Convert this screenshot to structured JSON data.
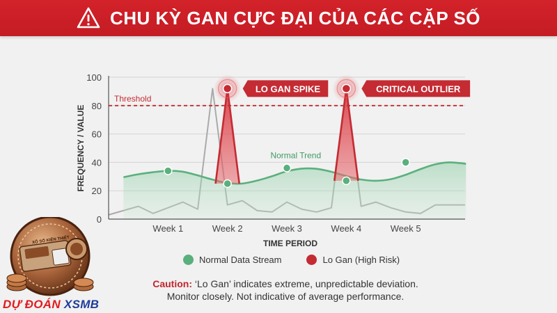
{
  "header": {
    "title": "CHU KỲ GAN CỰC ĐẠI CỦA CÁC CẶP SỐ",
    "icon": "warning-triangle-icon"
  },
  "chart_data": {
    "type": "line",
    "categories": [
      "Week 1",
      "Week 2",
      "Week 3",
      "Week 4",
      "Week 5"
    ],
    "xlabel": "TIME PERIOD",
    "ylabel": "FREQUENCY / VALUE",
    "ylim": [
      0,
      100
    ],
    "yticks": [
      0,
      20,
      40,
      60,
      80,
      100
    ],
    "grid": true,
    "threshold": {
      "label": "Threshold",
      "value": 80
    },
    "series": [
      {
        "name": "Normal Data Stream",
        "color": "#5ab07d",
        "x": [
          0.5,
          0.97,
          1.47,
          1.97,
          2.47,
          2.97,
          3.47,
          3.97,
          4.47,
          4.97,
          5.47,
          5.97,
          6.47,
          6.97,
          7.47,
          7.97,
          8.47,
          8.97,
          9.47,
          9.97,
          10.47,
          10.97,
          11.47,
          12.03
        ],
        "values": [
          29.5,
          31.5,
          33,
          34,
          33.5,
          31,
          28,
          25.5,
          25,
          27,
          30,
          33.5,
          35.5,
          35.5,
          33.5,
          30.5,
          28,
          27,
          28,
          31,
          35,
          38.5,
          40,
          39
        ],
        "markers": [
          {
            "x": 2,
            "value": 34
          },
          {
            "x": 4,
            "value": 25
          },
          {
            "x": 6,
            "value": 36
          },
          {
            "x": 8,
            "value": 27
          },
          {
            "x": 10,
            "value": 40
          }
        ]
      },
      {
        "name": "Lo Gan (High Risk)",
        "color": "#c42b33",
        "spikes": [
          {
            "start": 3.6,
            "peak": 4.0,
            "end": 4.4,
            "base": 25,
            "value": 92,
            "label": "LO GAN SPIKE"
          },
          {
            "start": 7.6,
            "peak": 8.0,
            "end": 8.4,
            "base": 27,
            "value": 92,
            "label": "CRITICAL OUTLIER"
          }
        ]
      },
      {
        "name": "Background",
        "color": "#aaaaaa",
        "x": [
          0,
          0.5,
          1,
          1.5,
          2,
          2.5,
          3,
          3.5,
          4,
          4.5,
          5,
          5.5,
          6,
          6.5,
          7,
          7.5,
          8,
          8.5,
          9,
          9.5,
          10,
          10.5,
          11,
          11.5,
          12
        ],
        "values": [
          3,
          6,
          9,
          4,
          8,
          12,
          7,
          92,
          10,
          13,
          6,
          5,
          12,
          7,
          5,
          8,
          92,
          9,
          12,
          8,
          5,
          4,
          10,
          10,
          10
        ]
      }
    ],
    "annotations": [
      {
        "text": "Normal Trend",
        "x": 6.3,
        "value": 43
      }
    ]
  },
  "legend": {
    "items": [
      {
        "label": "Normal Data Stream",
        "color": "#5ab07d"
      },
      {
        "label": "Lo Gan (High Risk)",
        "color": "#c42b33"
      }
    ]
  },
  "caption": {
    "lead": "Caution:",
    "line1": " ‘Lo Gan’ indicates extreme, unpredictable deviation.",
    "line2": "Monitor closely. Not indicative of average performance."
  },
  "brand": {
    "part1": "DỰ ĐOÁN ",
    "part2": "XSMB",
    "coin_text": "XỔ SỐ KIẾN THIẾT"
  }
}
